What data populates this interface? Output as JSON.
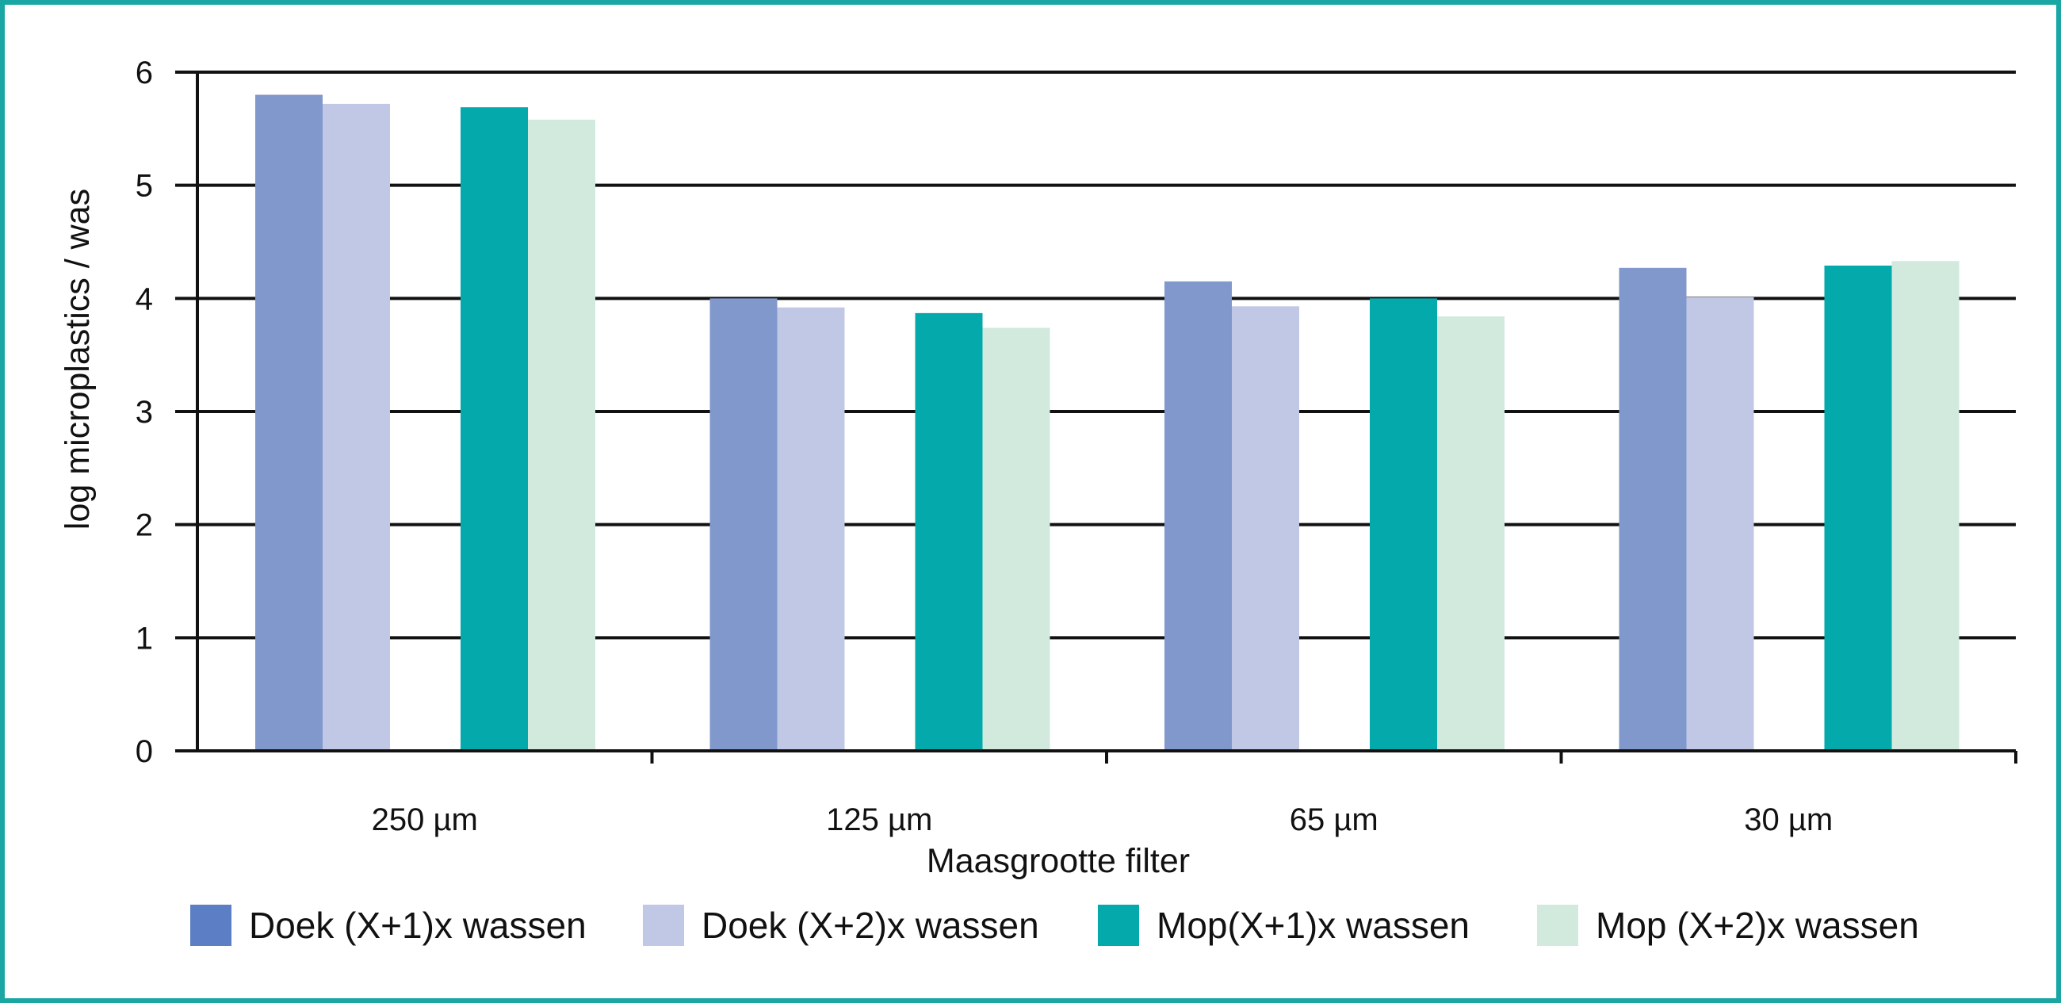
{
  "chart_data": {
    "type": "bar",
    "title": "",
    "xlabel": "Maasgrootte filter",
    "ylabel": "log microplastics / was",
    "ylim": [
      0,
      6
    ],
    "yticks": [
      0,
      1,
      2,
      3,
      4,
      5,
      6
    ],
    "grid": true,
    "legend_position": "bottom",
    "categories": [
      "250 µm",
      "125 µm",
      "65 µm",
      "30 µm"
    ],
    "series": [
      {
        "name": "Doek (X+1)x wassen",
        "color": "#8198cd",
        "legend_color": "#5b7ec5",
        "values": [
          5.8,
          4.0,
          4.15,
          4.27
        ]
      },
      {
        "name": "Doek (X+2)x wassen",
        "color": "#c1c8e6",
        "legend_color": "#c1c8e6",
        "values": [
          5.72,
          3.92,
          3.93,
          4.01
        ]
      },
      {
        "name": "Mop(X+1)x wassen",
        "color": "#03a9ab",
        "legend_color": "#03a9ab",
        "values": [
          5.69,
          3.87,
          4.0,
          4.29
        ]
      },
      {
        "name": "Mop (X+2)x wassen",
        "color": "#d2e9dd",
        "legend_color": "#d2e9dd",
        "values": [
          5.58,
          3.74,
          3.84,
          4.33
        ]
      }
    ]
  }
}
